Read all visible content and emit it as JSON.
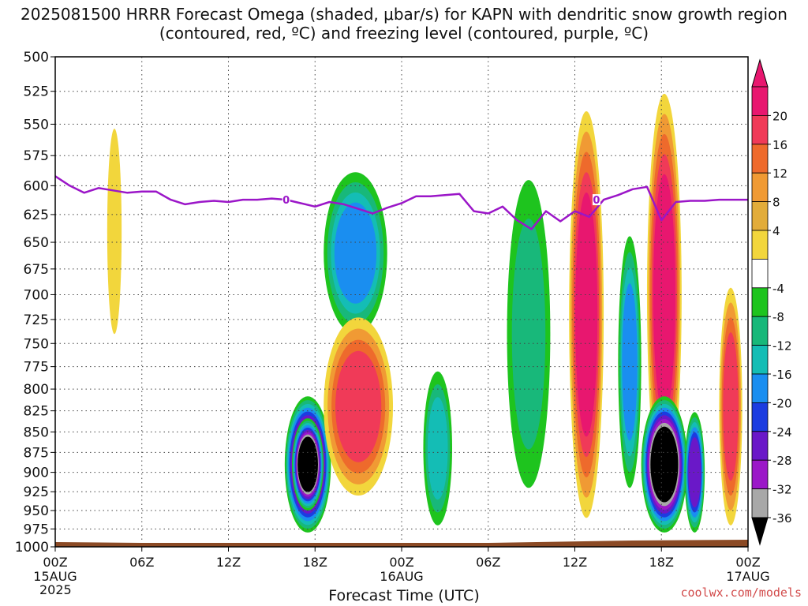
{
  "chart_data": {
    "type": "heatmap",
    "title": "2025081500 HRRR Forecast Omega (shaded, μbar/s) for KAPN with dendritic snow growth region (contoured, red, ºC) and freezing level (contoured, purple, ºC)",
    "xlabel": "Forecast Time (UTC)",
    "ylabel": "",
    "x_ticks": [
      {
        "label": "00Z",
        "sub": "15AUG",
        "hour": 0
      },
      {
        "label": "06Z",
        "sub": "",
        "hour": 6
      },
      {
        "label": "12Z",
        "sub": "",
        "hour": 12
      },
      {
        "label": "18Z",
        "sub": "",
        "hour": 18
      },
      {
        "label": "00Z",
        "sub": "16AUG",
        "hour": 24
      },
      {
        "label": "06Z",
        "sub": "",
        "hour": 30
      },
      {
        "label": "12Z",
        "sub": "",
        "hour": 36
      },
      {
        "label": "18Z",
        "sub": "",
        "hour": 42
      },
      {
        "label": "00Z",
        "sub": "17AUG",
        "hour": 48
      }
    ],
    "year_label": "2025",
    "xlim_hours": [
      0,
      48
    ],
    "pressure_levels": [
      500,
      525,
      550,
      575,
      600,
      625,
      650,
      675,
      700,
      725,
      750,
      775,
      800,
      825,
      850,
      875,
      900,
      925,
      950,
      975,
      1000
    ],
    "ylim": [
      1000,
      500
    ],
    "y_scale": "log-pressure",
    "grid": true,
    "colorbar": {
      "labels": [
        "20",
        "16",
        "12",
        "8",
        "4",
        "-4",
        "-8",
        "-12",
        "-16",
        "-20",
        "-24",
        "-28",
        "-32",
        "-36"
      ],
      "colors": [
        "#e8176f",
        "#f03a58",
        "#ee6a2c",
        "#f09a34",
        "#e2ac3a",
        "#f2d63c",
        "#ffffff",
        "#1ec41e",
        "#18b87a",
        "#14bdb5",
        "#1a8ef0",
        "#1c3ce0",
        "#6a18c8",
        "#9b18c8",
        "#a8a8a8"
      ]
    },
    "freezing_level": {
      "label": "0",
      "color": "#9b16c8",
      "hours": [
        0,
        1,
        2,
        3,
        4,
        5,
        6,
        7,
        8,
        9,
        10,
        11,
        12,
        13,
        14,
        15,
        16,
        17,
        18,
        19,
        20,
        21,
        22,
        23,
        24,
        25,
        26,
        27,
        28,
        29,
        30,
        31,
        32,
        33,
        34,
        35,
        36,
        37,
        38,
        39,
        40,
        41,
        42,
        43,
        44,
        45,
        46,
        47,
        48
      ],
      "pressure": [
        592,
        600,
        606,
        602,
        604,
        606,
        605,
        605,
        612,
        616,
        614,
        613,
        614,
        612,
        612,
        611,
        612,
        615,
        618,
        614,
        616,
        620,
        624,
        619,
        615,
        609,
        609,
        608,
        607,
        622,
        624,
        618,
        630,
        638,
        622,
        631,
        622,
        627,
        612,
        608,
        603,
        601,
        630,
        614,
        613,
        613,
        612,
        612,
        612
      ]
    },
    "omega_regions": [
      {
        "t": 17.5,
        "p": 890,
        "dt": 1.6,
        "dp": 90,
        "value": -36
      },
      {
        "t": 17.5,
        "p": 890,
        "dt": 1.1,
        "dp": 60,
        "value": -40
      },
      {
        "t": 20.8,
        "p": 660,
        "dt": 2.2,
        "dp": 80,
        "value": -16
      },
      {
        "t": 21.0,
        "p": 820,
        "dt": 2.4,
        "dp": 110,
        "value": 16
      },
      {
        "t": 36.8,
        "p": 720,
        "dt": 1.2,
        "dp": 240,
        "value": 20
      },
      {
        "t": 42.2,
        "p": 700,
        "dt": 1.2,
        "dp": 230,
        "value": 20
      },
      {
        "t": 42.2,
        "p": 890,
        "dt": 1.6,
        "dp": 90,
        "value": -36
      },
      {
        "t": 39.8,
        "p": 770,
        "dt": 0.8,
        "dp": 150,
        "value": -16
      },
      {
        "t": 32.8,
        "p": 740,
        "dt": 1.5,
        "dp": 180,
        "value": -8
      },
      {
        "t": 46.8,
        "p": 820,
        "dt": 0.8,
        "dp": 150,
        "value": 16
      },
      {
        "t": 4.1,
        "p": 640,
        "dt": 0.5,
        "dp": 100,
        "value": 4
      },
      {
        "t": 26.5,
        "p": 870,
        "dt": 1.0,
        "dp": 100,
        "value": -12
      },
      {
        "t": 44.3,
        "p": 900,
        "dt": 0.7,
        "dp": 80,
        "value": -24
      }
    ]
  },
  "page": {
    "x_axis_title": "Forecast Time (UTC)",
    "credit": "coolwx.com/models"
  }
}
